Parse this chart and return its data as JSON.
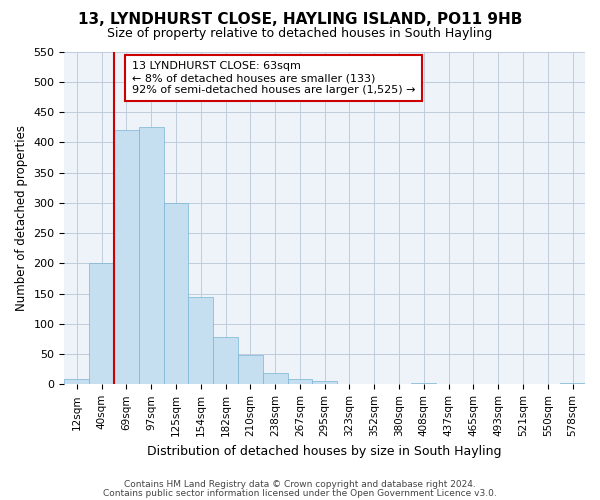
{
  "title": "13, LYNDHURST CLOSE, HAYLING ISLAND, PO11 9HB",
  "subtitle": "Size of property relative to detached houses in South Hayling",
  "xlabel": "Distribution of detached houses by size in South Hayling",
  "ylabel": "Number of detached properties",
  "bin_labels": [
    "12sqm",
    "40sqm",
    "69sqm",
    "97sqm",
    "125sqm",
    "154sqm",
    "182sqm",
    "210sqm",
    "238sqm",
    "267sqm",
    "295sqm",
    "323sqm",
    "352sqm",
    "380sqm",
    "408sqm",
    "437sqm",
    "465sqm",
    "493sqm",
    "521sqm",
    "550sqm",
    "578sqm"
  ],
  "bar_heights": [
    8,
    200,
    420,
    425,
    300,
    145,
    78,
    48,
    18,
    8,
    5,
    0,
    0,
    0,
    3,
    0,
    0,
    0,
    0,
    0,
    2
  ],
  "bar_color": "#c5dff0",
  "bar_edge_color": "#7ab4d4",
  "marker_line_color": "#cc0000",
  "ylim": [
    0,
    550
  ],
  "yticks": [
    0,
    50,
    100,
    150,
    200,
    250,
    300,
    350,
    400,
    450,
    500,
    550
  ],
  "annotation_line1": "13 LYNDHURST CLOSE: 63sqm",
  "annotation_line2": "← 8% of detached houses are smaller (133)",
  "annotation_line3": "92% of semi-detached houses are larger (1,525) →",
  "footnote1": "Contains HM Land Registry data © Crown copyright and database right 2024.",
  "footnote2": "Contains public sector information licensed under the Open Government Licence v3.0.",
  "background_color": "#ffffff",
  "plot_bg_color": "#eef3fa",
  "grid_color": "#c0cbdc"
}
